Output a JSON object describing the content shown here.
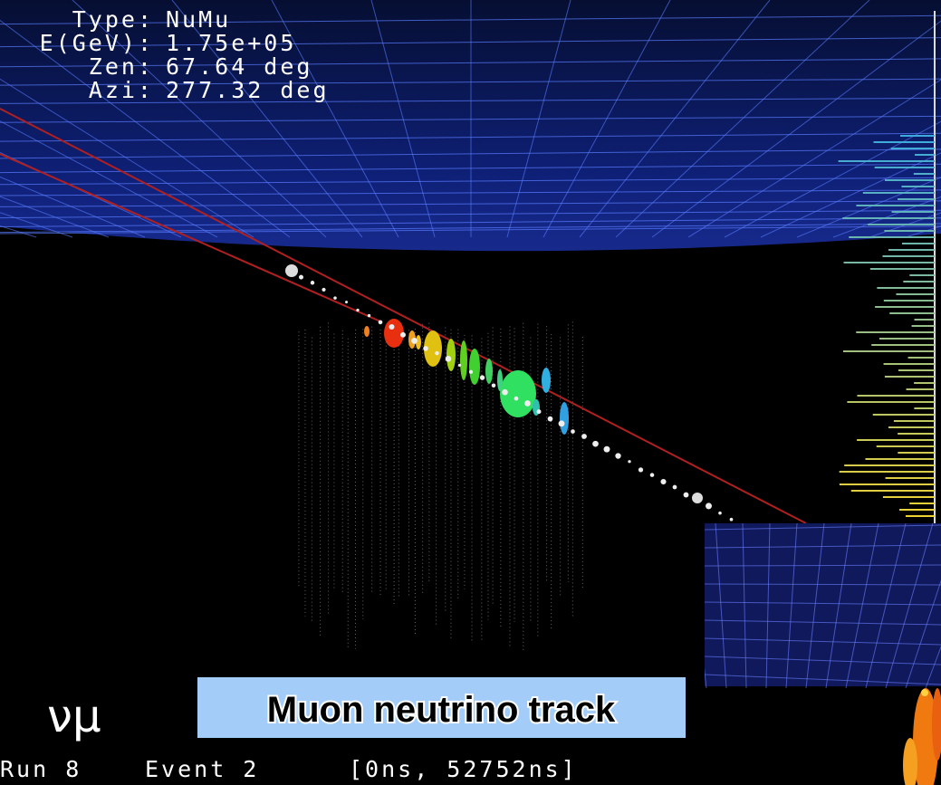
{
  "info": {
    "rows": [
      {
        "label": "Type:",
        "value": "NuMu"
      },
      {
        "label": "E(GeV):",
        "value": "1.75e+05"
      },
      {
        "label": "Zen:",
        "value": "67.64 deg"
      },
      {
        "label": "Azi:",
        "value": "277.32 deg"
      }
    ]
  },
  "particle": "νμ",
  "caption": "Muon neutrino track",
  "footer": {
    "run": "Run 8",
    "event": "Event 2",
    "time_window": "[0ns, 52752ns]"
  }
}
